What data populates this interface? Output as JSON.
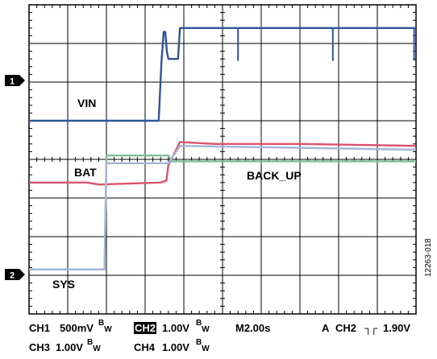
{
  "chart_data": {
    "type": "line",
    "title": "",
    "xlabel": "",
    "ylabel": "",
    "x_divisions": 10,
    "y_divisions": 8,
    "grid": true,
    "time_per_div": "2.00s",
    "series": [
      {
        "name": "VIN",
        "channel": 1,
        "color": "#2f5597",
        "points": [
          [
            0,
            1.0
          ],
          [
            3.35,
            1.0
          ],
          [
            3.42,
            2.5
          ],
          [
            3.48,
            3.3
          ],
          [
            3.52,
            3.3
          ],
          [
            3.56,
            2.8
          ],
          [
            3.6,
            2.6
          ],
          [
            3.85,
            2.6
          ],
          [
            3.9,
            3.4
          ],
          [
            10,
            3.4
          ]
        ],
        "glitches": [
          5.4,
          7.85,
          9.95
        ],
        "glitch_depth": 0.85
      },
      {
        "name": "BAT",
        "color": "#d9536f",
        "points": [
          [
            0,
            -0.6
          ],
          [
            1.5,
            -0.6
          ],
          [
            1.8,
            -0.65
          ],
          [
            3.4,
            -0.6
          ],
          [
            3.55,
            -0.55
          ],
          [
            3.6,
            -0.15
          ],
          [
            3.9,
            0.45
          ],
          [
            4.8,
            0.4
          ],
          [
            7,
            0.4
          ],
          [
            10,
            0.35
          ]
        ]
      },
      {
        "name": "BACK_UP",
        "color": "#7fbf9a",
        "points": [
          [
            0,
            -2.85
          ],
          [
            1.95,
            -2.85
          ],
          [
            2.0,
            0.1
          ],
          [
            3.6,
            0.1
          ],
          [
            3.7,
            -0.05
          ],
          [
            10,
            -0.05
          ]
        ]
      },
      {
        "name": "SYS",
        "channel": 2,
        "color": "#a5b4d6",
        "points": [
          [
            0,
            -2.85
          ],
          [
            1.95,
            -2.85
          ],
          [
            2.0,
            -0.1
          ],
          [
            3.6,
            -0.1
          ],
          [
            3.9,
            0.35
          ],
          [
            10,
            0.25
          ]
        ]
      }
    ],
    "labels": {
      "vin": "VIN",
      "bat": "BAT",
      "back_up": "BACK_UP",
      "sys": "SYS"
    },
    "channel_markers": [
      "1",
      "2"
    ],
    "status_line1": {
      "ch1": "CH1",
      "ch1_scale": "500mV",
      "ch2": "CH2",
      "ch2_scale": "1.00V",
      "timebase": "M2.00s",
      "trigger_mode": "A",
      "trigger_ch": "CH2",
      "trigger_symbol": "┐┌",
      "trigger_level": "1.90V"
    },
    "status_line2": {
      "ch3": "CH3",
      "ch3_scale": "1.00V",
      "ch4": "CH4",
      "ch4_scale": "1.00V"
    },
    "bw_letters": {
      "b": "B",
      "w": "W"
    },
    "figure_id": "12263-018"
  }
}
